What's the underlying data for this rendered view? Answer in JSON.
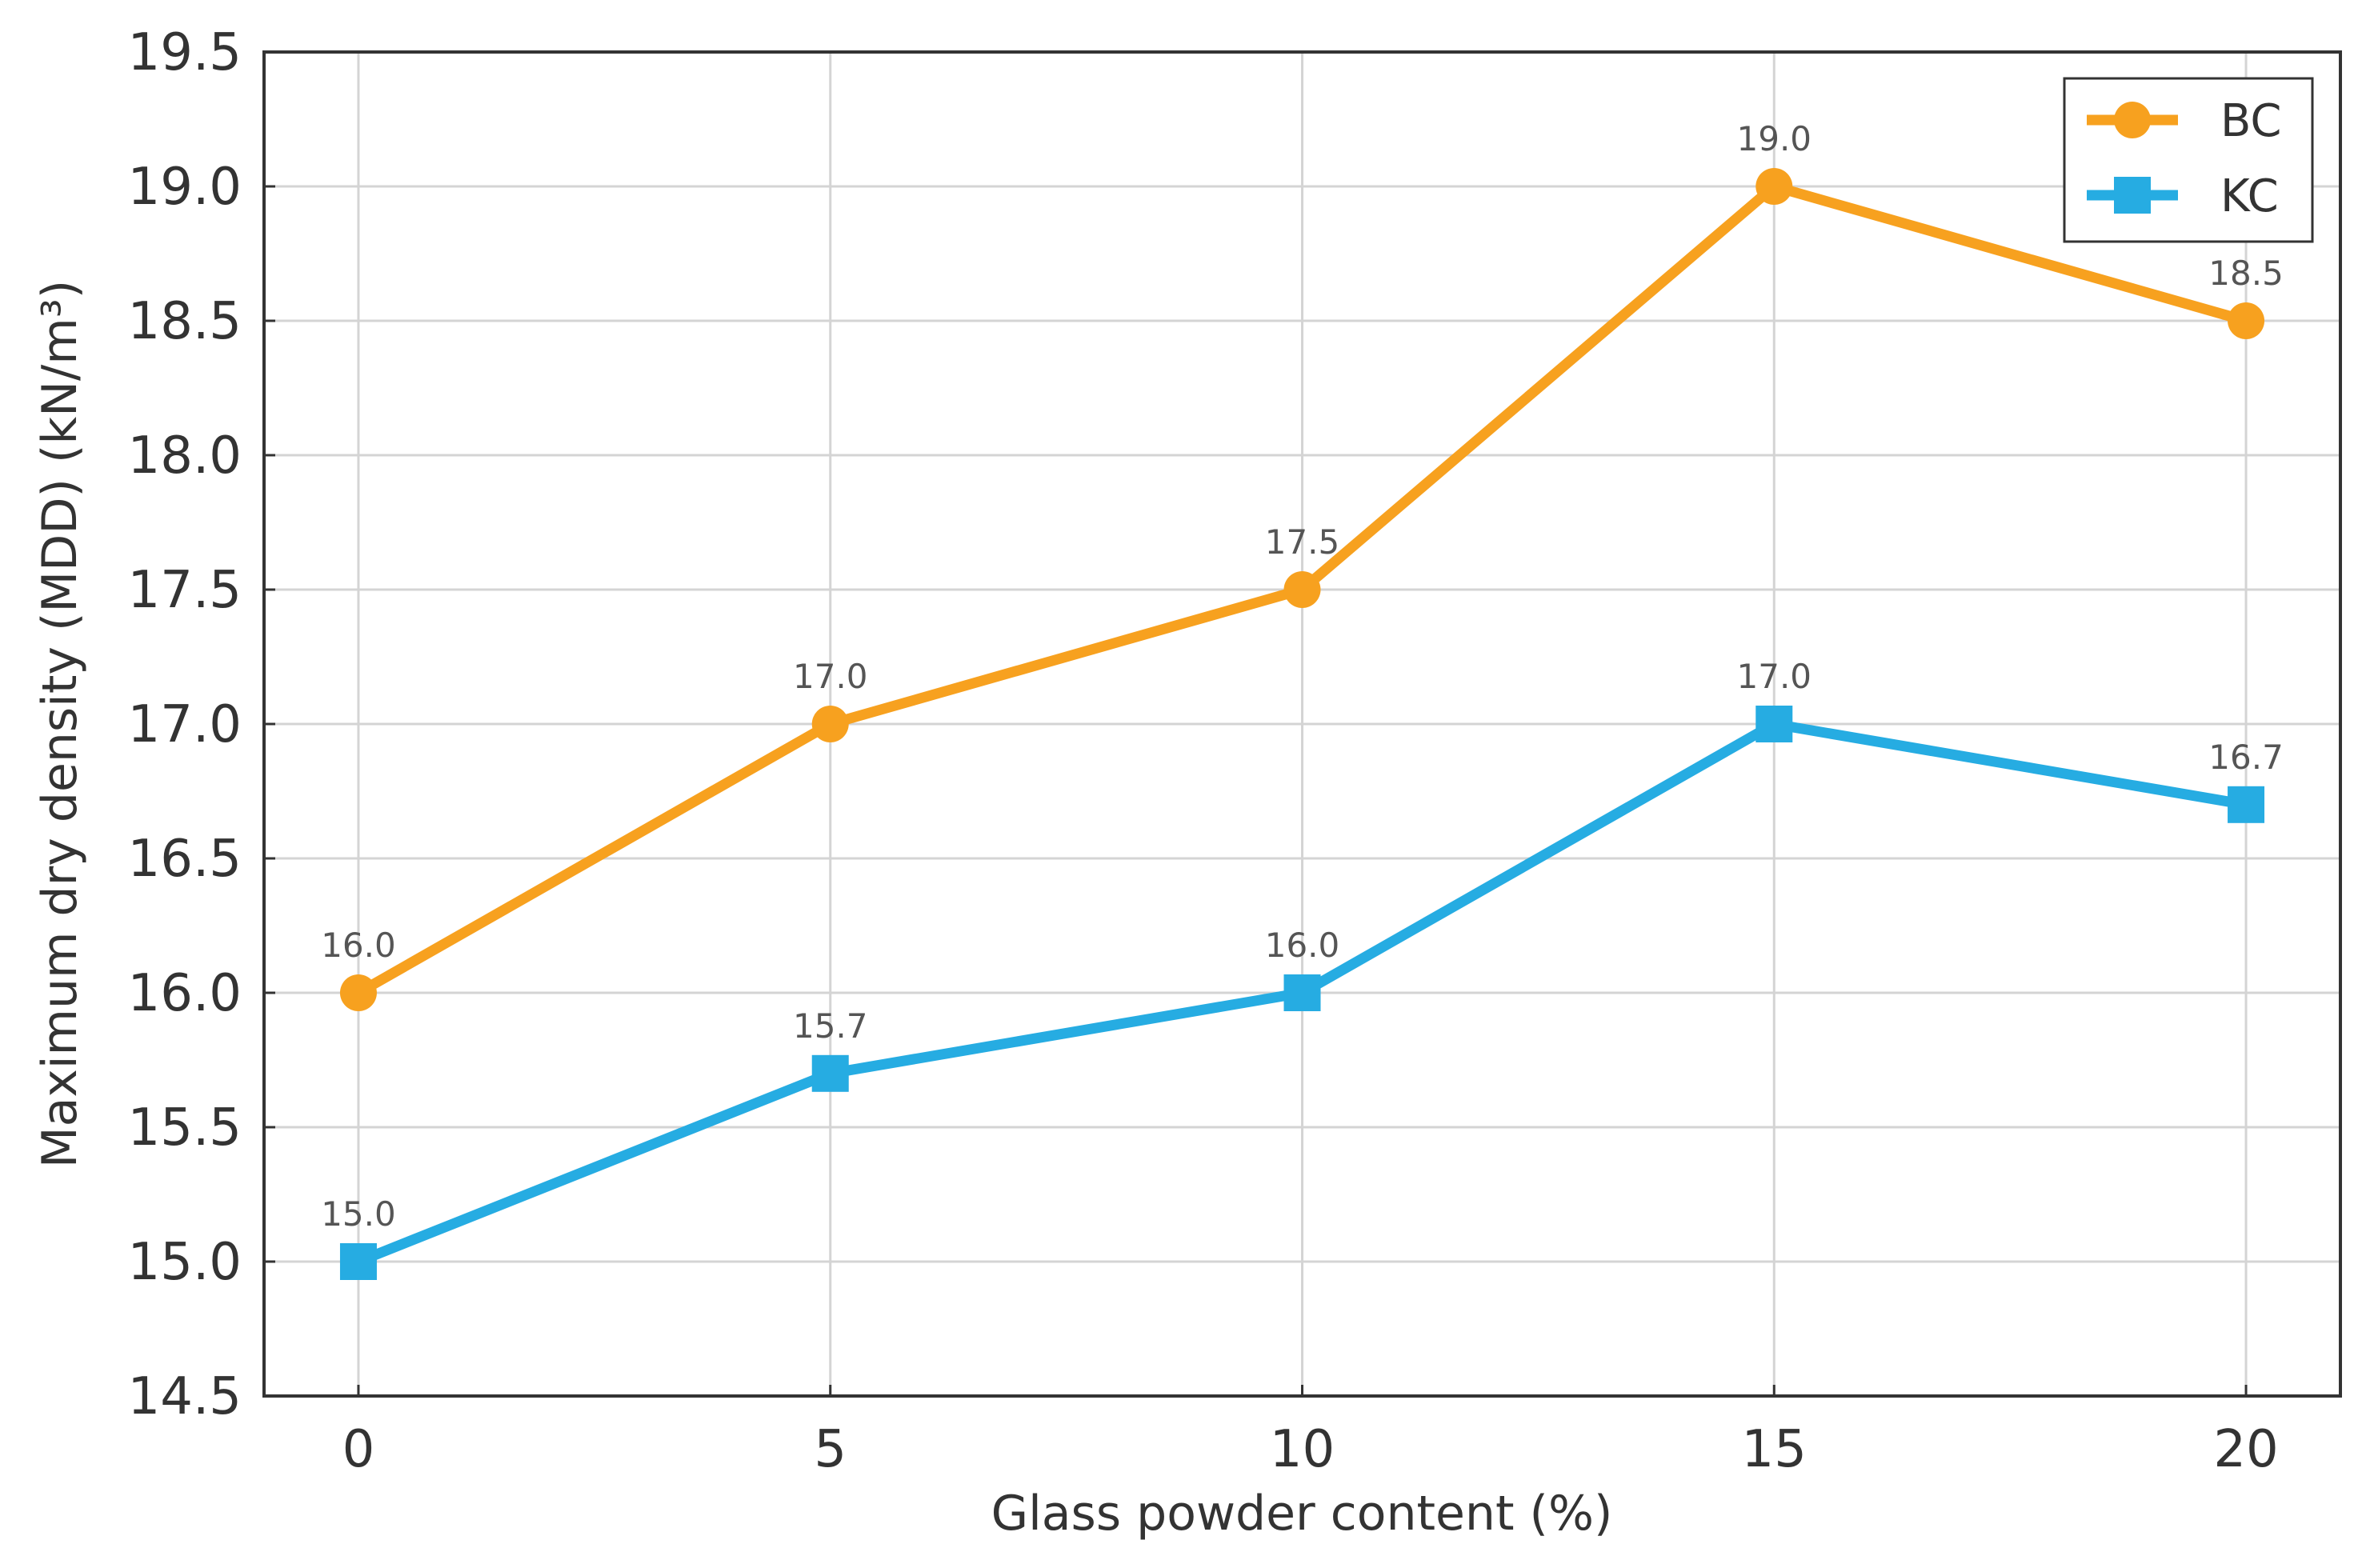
{
  "chart_data": {
    "type": "line",
    "xlabel": "Glass powder content (%)",
    "ylabel": "Maximum dry density (MDD) (kN/m³)",
    "x": [
      0,
      5,
      10,
      15,
      20
    ],
    "xlim": [
      -1,
      21
    ],
    "ylim": [
      14.5,
      19.5
    ],
    "xticks": [
      0,
      5,
      10,
      15,
      20
    ],
    "yticks": [
      14.5,
      15.0,
      15.5,
      16.0,
      16.5,
      17.0,
      17.5,
      18.0,
      18.5,
      19.0,
      19.5
    ],
    "xtick_labels": [
      "0",
      "5",
      "10",
      "15",
      "20"
    ],
    "ytick_labels": [
      "14.5",
      "15.0",
      "15.5",
      "16.0",
      "16.5",
      "17.0",
      "17.5",
      "18.0",
      "18.5",
      "19.0",
      "19.5"
    ],
    "grid": true,
    "legend_position": "top-right",
    "series": [
      {
        "name": "BC",
        "values": [
          16.0,
          17.0,
          17.5,
          19.0,
          18.5
        ],
        "data_labels": [
          "16.0",
          "17.0",
          "17.5",
          "19.0",
          "18.5"
        ],
        "color": "#F7A11F",
        "marker": "circle"
      },
      {
        "name": "KC",
        "values": [
          15.0,
          15.7,
          16.0,
          17.0,
          16.7
        ],
        "data_labels": [
          "15.0",
          "15.7",
          "16.0",
          "17.0",
          "16.7"
        ],
        "color": "#26ACE2",
        "marker": "square"
      }
    ]
  }
}
